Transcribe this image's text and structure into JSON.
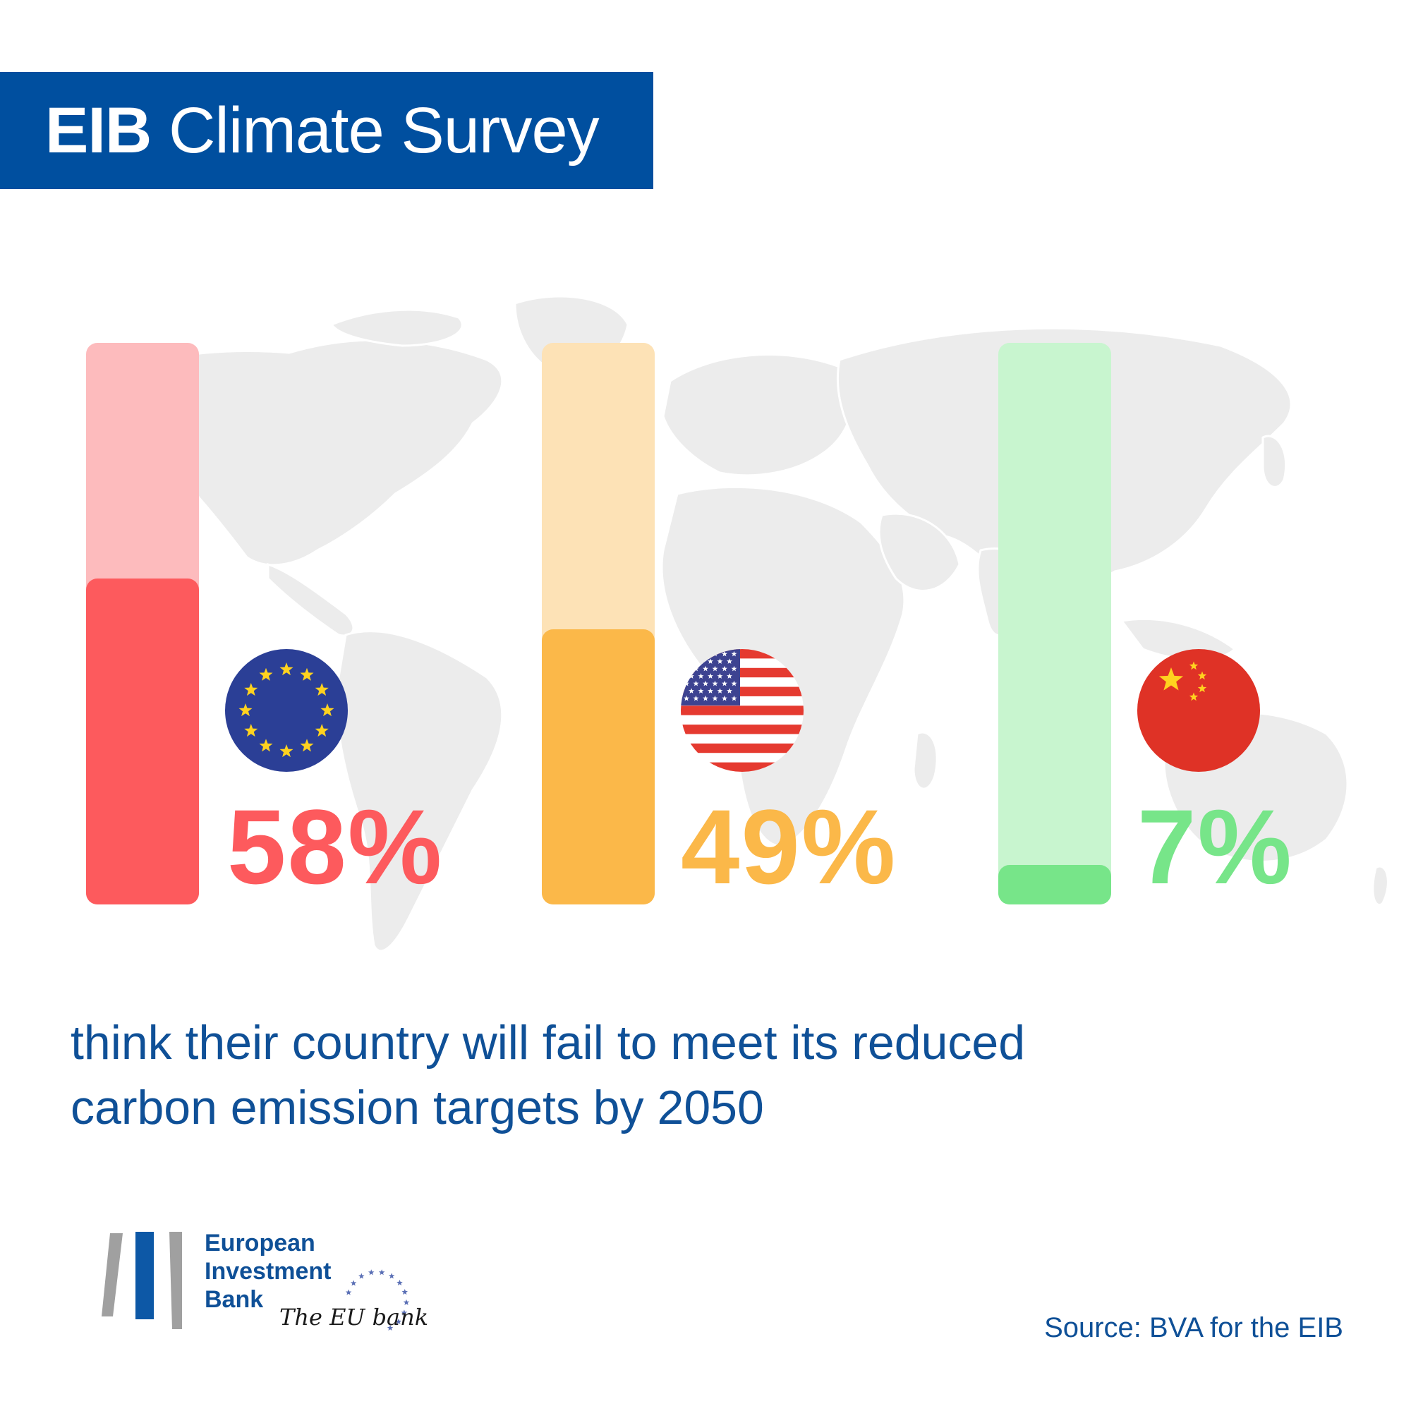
{
  "header": {
    "title_bold": "EIB",
    "title_rest": "Climate Survey"
  },
  "chart_data": {
    "type": "bar",
    "categories": [
      "EU",
      "US",
      "China"
    ],
    "values": [
      58,
      49,
      7
    ],
    "value_labels": [
      "58%",
      "49%",
      "7%"
    ],
    "ylim": [
      0,
      100
    ],
    "colors": {
      "fill": [
        "#fd5a5d",
        "#fbb849",
        "#77e589"
      ],
      "track": [
        "#fdbbbd",
        "#fde2b6",
        "#c8f5cf"
      ]
    },
    "flags": [
      "eu-flag-icon",
      "us-flag-icon",
      "china-flag-icon"
    ]
  },
  "caption": {
    "line1": "think their country will fail to meet its reduced",
    "line2": "carbon emission targets by 2050"
  },
  "footer": {
    "logo_line1": "European",
    "logo_line2": "Investment",
    "logo_line3": "Bank",
    "tagline": "The EU bank",
    "source": "Source: BVA for the EIB"
  },
  "colors": {
    "brand_blue": "#004f9f",
    "text_blue": "#0f5097",
    "map_gray": "#ececec"
  }
}
